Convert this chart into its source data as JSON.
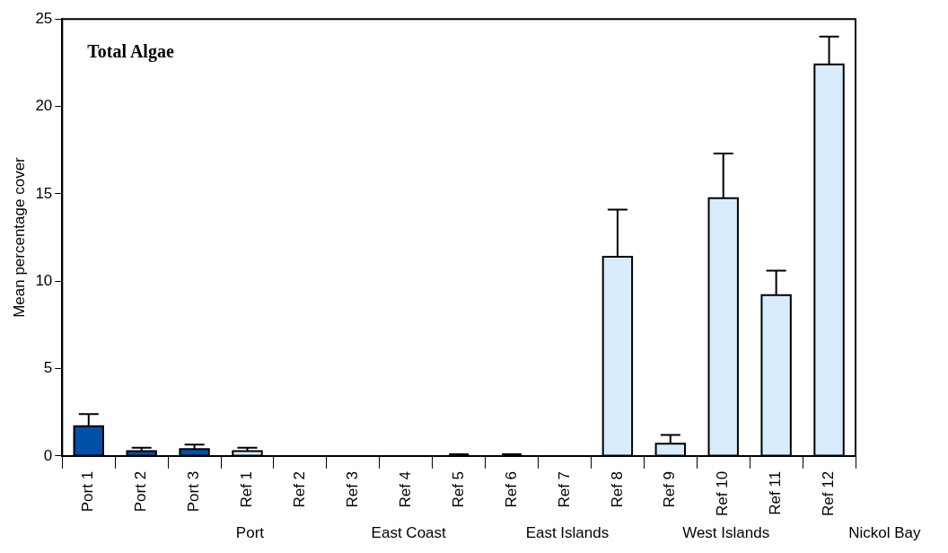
{
  "chart_data": {
    "type": "bar",
    "title": "Total Algae",
    "ylabel": "Mean percentage cover",
    "categories": [
      "Port 1",
      "Port 2",
      "Port 3",
      "Ref 1",
      "Ref 2",
      "Ref 3",
      "Ref 4",
      "Ref 5",
      "Ref 6",
      "Ref 7",
      "Ref 8",
      "Ref 9",
      "Ref 10",
      "Ref 11",
      "Ref 12"
    ],
    "values": [
      1.7,
      0.28,
      0.4,
      0.28,
      0,
      0,
      0,
      0.05,
      0.05,
      0,
      11.4,
      0.7,
      14.75,
      9.2,
      22.4
    ],
    "colors": [
      "#0050a8",
      "#0050a8",
      "#0050a8",
      "#d9ecfc",
      "#d9ecfc",
      "#d9ecfc",
      "#d9ecfc",
      "#d9ecfc",
      "#d9ecfc",
      "#d9ecfc",
      "#d9ecfc",
      "#d9ecfc",
      "#d9ecfc",
      "#d9ecfc",
      "#d9ecfc"
    ],
    "errors": [
      [
        1.7,
        2.4
      ],
      [
        0.28,
        0.47
      ],
      [
        0.4,
        0.65
      ],
      [
        0.28,
        0.47
      ],
      null,
      null,
      null,
      [
        0.05,
        0.1
      ],
      [
        0.05,
        0.1
      ],
      null,
      [
        11.4,
        14.1
      ],
      [
        0.7,
        1.2
      ],
      [
        14.75,
        17.3
      ],
      [
        9.2,
        10.6
      ],
      [
        22.4,
        24.0
      ]
    ],
    "annotations": [
      "Port",
      "East Coast",
      "East Islands",
      "West Islands",
      "Nickol Bay"
    ],
    "ylim": [
      0,
      25
    ],
    "yticks": [
      0,
      5,
      10,
      15,
      20,
      25
    ],
    "grid": false,
    "legend": false
  }
}
